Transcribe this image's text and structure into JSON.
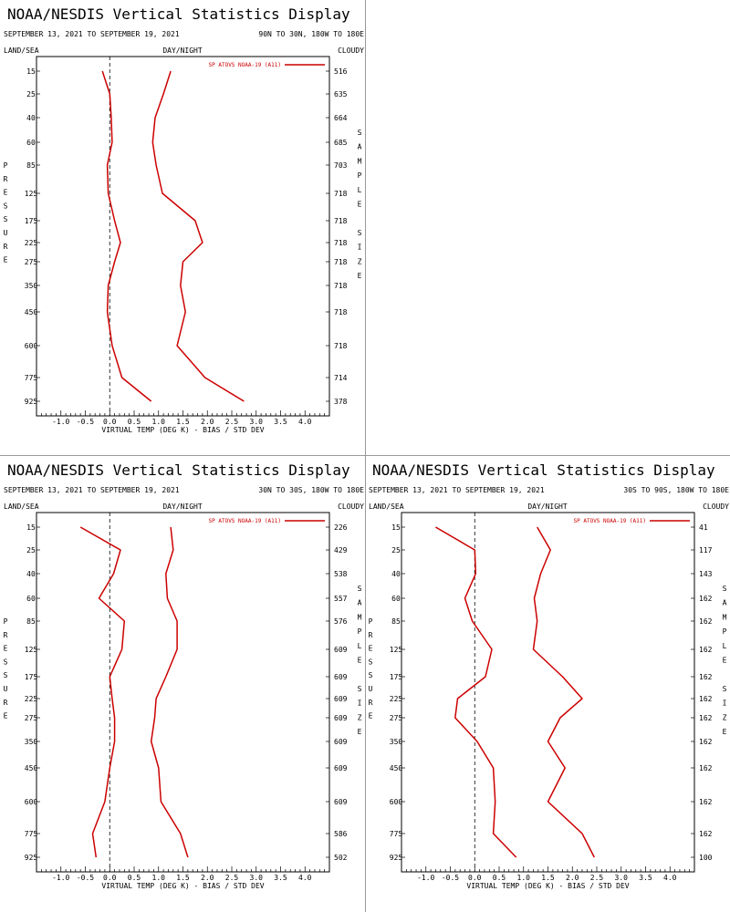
{
  "colors": {
    "series": "#cc0000",
    "axis": "#000000",
    "zero_line": "#000000",
    "divider": "#888888"
  },
  "chart_data": [
    {
      "type": "line",
      "title": "NOAA/NESDIS Vertical Statistics Display",
      "date_range": "SEPTEMBER 13, 2021 TO SEPTEMBER 19, 2021",
      "region": "90N TO 30N, 180W TO 180E",
      "corner_labels": {
        "left": "LAND/SEA",
        "middle": "DAY/NIGHT",
        "right": "CLOUDY"
      },
      "xlabel": "VIRTUAL TEMP (DEG K) - BIAS / STD DEV",
      "ylabel": "PRESSURE",
      "y2label": "SAMPLE SIZE",
      "xlim": [
        -1.5,
        4.5
      ],
      "x_ticks": [
        "-1.0",
        "-0.5",
        "0.0",
        "0.5",
        "1.0",
        "1.5",
        "2.0",
        "2.5",
        "3.0",
        "3.5",
        "4.0"
      ],
      "pressure_levels": [
        "15",
        "25",
        "40",
        "60",
        "85",
        "125",
        "175",
        "225",
        "275",
        "350",
        "450",
        "600",
        "775",
        "925"
      ],
      "sample_sizes": [
        "516",
        "635",
        "664",
        "685",
        "703",
        "718",
        "718",
        "718",
        "718",
        "718",
        "718",
        "718",
        "714",
        "378"
      ],
      "legend": {
        "label": "SP ATOVS NOAA-19 (A11)",
        "position": "top-right"
      },
      "series": [
        {
          "stat": "bias",
          "values": [
            -0.15,
            0.0,
            0.03,
            0.05,
            -0.05,
            -0.03,
            0.1,
            0.22,
            0.1,
            -0.03,
            -0.05,
            0.05,
            0.25,
            0.85
          ]
        },
        {
          "stat": "std_dev",
          "values": [
            1.25,
            1.1,
            0.93,
            0.88,
            0.95,
            1.08,
            1.75,
            1.9,
            1.5,
            1.45,
            1.55,
            1.38,
            1.95,
            2.75
          ]
        }
      ]
    },
    {
      "type": "line",
      "title": "NOAA/NESDIS Vertical Statistics Display",
      "date_range": "SEPTEMBER 13, 2021 TO SEPTEMBER 19, 2021",
      "region": "30N TO 30S, 180W TO 180E",
      "corner_labels": {
        "left": "LAND/SEA",
        "middle": "DAY/NIGHT",
        "right": "CLOUDY"
      },
      "xlabel": "VIRTUAL TEMP (DEG K) - BIAS / STD DEV",
      "ylabel": "PRESSURE",
      "y2label": "SAMPLE SIZE",
      "xlim": [
        -1.5,
        4.5
      ],
      "x_ticks": [
        "-1.0",
        "-0.5",
        "0.0",
        "0.5",
        "1.0",
        "1.5",
        "2.0",
        "2.5",
        "3.0",
        "3.5",
        "4.0"
      ],
      "pressure_levels": [
        "15",
        "25",
        "40",
        "60",
        "85",
        "125",
        "175",
        "225",
        "275",
        "350",
        "450",
        "600",
        "775",
        "925"
      ],
      "sample_sizes": [
        "226",
        "429",
        "538",
        "557",
        "576",
        "609",
        "609",
        "609",
        "609",
        "609",
        "609",
        "609",
        "586",
        "502"
      ],
      "legend": {
        "label": "SP ATOVS NOAA-19 (A11)",
        "position": "top-right"
      },
      "series": [
        {
          "stat": "bias",
          "values": [
            -0.6,
            0.22,
            0.08,
            -0.22,
            0.3,
            0.25,
            0.0,
            0.05,
            0.1,
            0.1,
            0.0,
            -0.1,
            -0.35,
            -0.28
          ]
        },
        {
          "stat": "std_dev",
          "values": [
            1.25,
            1.3,
            1.15,
            1.18,
            1.38,
            1.38,
            1.15,
            0.95,
            0.92,
            0.85,
            1.0,
            1.05,
            1.45,
            1.6
          ]
        }
      ]
    },
    {
      "type": "line",
      "title": "NOAA/NESDIS Vertical Statistics Display",
      "date_range": "SEPTEMBER 13, 2021 TO SEPTEMBER 19, 2021",
      "region": "30S TO 90S, 180W TO 180E",
      "corner_labels": {
        "left": "LAND/SEA",
        "middle": "DAY/NIGHT",
        "right": "CLOUDY"
      },
      "xlabel": "VIRTUAL TEMP (DEG K) - BIAS / STD DEV",
      "ylabel": "PRESSURE",
      "y2label": "SAMPLE SIZE",
      "xlim": [
        -1.5,
        4.5
      ],
      "x_ticks": [
        "-1.0",
        "-0.5",
        "0.0",
        "0.5",
        "1.0",
        "1.5",
        "2.0",
        "2.5",
        "3.0",
        "3.5",
        "4.0"
      ],
      "pressure_levels": [
        "15",
        "25",
        "40",
        "60",
        "85",
        "125",
        "175",
        "225",
        "275",
        "350",
        "450",
        "600",
        "775",
        "925"
      ],
      "sample_sizes": [
        "41",
        "117",
        "143",
        "162",
        "162",
        "162",
        "162",
        "162",
        "162",
        "162",
        "162",
        "162",
        "162",
        "100"
      ],
      "legend": {
        "label": "SP ATOVS NOAA-19 (A11)",
        "position": "top-right"
      },
      "series": [
        {
          "stat": "bias",
          "values": [
            -0.8,
            0.0,
            0.02,
            -0.2,
            -0.05,
            0.35,
            0.22,
            -0.35,
            -0.4,
            0.05,
            0.38,
            0.42,
            0.38,
            0.85
          ]
        },
        {
          "stat": "std_dev",
          "values": [
            1.28,
            1.55,
            1.35,
            1.22,
            1.28,
            1.2,
            1.8,
            2.2,
            1.75,
            1.5,
            1.85,
            1.5,
            2.2,
            2.45
          ]
        }
      ]
    }
  ]
}
